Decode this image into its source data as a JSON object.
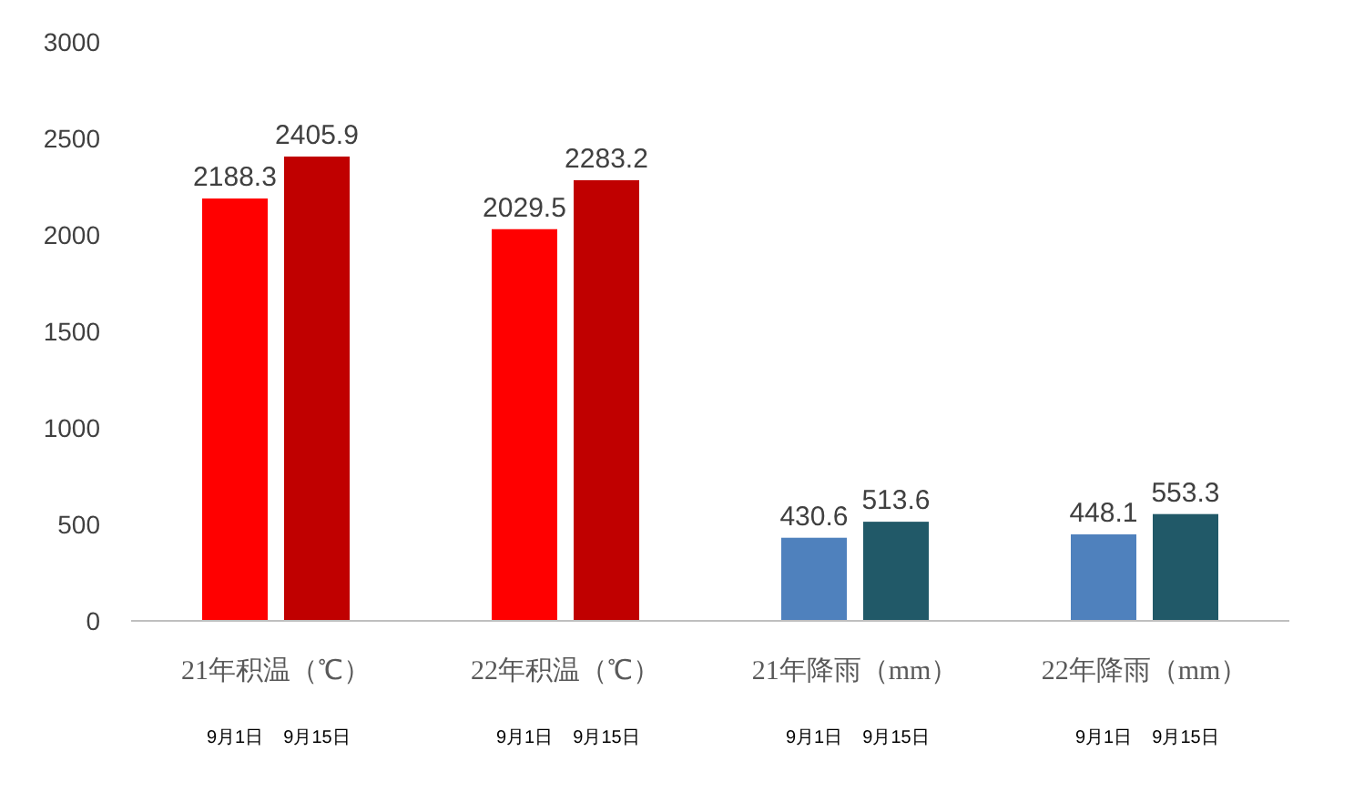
{
  "chart_data": {
    "type": "bar",
    "categories": [
      "9月1日",
      "9月15日",
      "9月1日",
      "9月15日",
      "9月1日",
      "9月15日",
      "9月1日",
      "9月15日"
    ],
    "colors": [
      "#ff0000",
      "#c00000",
      "#ff0000",
      "#c00000",
      "#4f81bd",
      "#215968",
      "#4f81bd",
      "#215968"
    ],
    "values": [
      2188.3,
      2405.9,
      2029.5,
      2283.2,
      430.6,
      513.6,
      448.1,
      553.3
    ],
    "annotations": [
      "21年积温（℃）",
      "22年积温（℃）",
      "21年降雨（mm）",
      "22年降雨（mm）"
    ],
    "ylim": [
      0,
      3000
    ],
    "yticks": [
      0,
      500,
      1000,
      1500,
      2000,
      2500,
      3000
    ],
    "data_labels": true
  }
}
